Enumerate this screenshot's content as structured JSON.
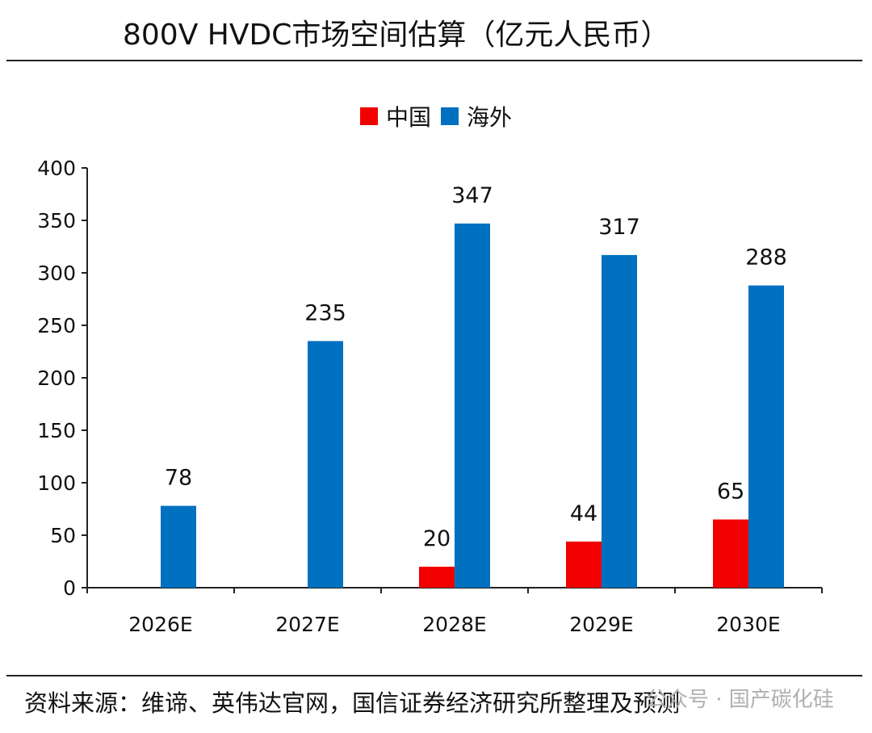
{
  "title": "800V HVDC市场空间估算（亿元人民币）",
  "source": "资料来源：维谛、英伟达官网，国信证券经济研究所整理及预测",
  "watermark": "公众号 · 国产碳化硅",
  "colors": {
    "china": "#f20000",
    "overseas": "#0070c0",
    "axis": "#222222"
  },
  "chart_data": {
    "type": "bar",
    "categories": [
      "2026E",
      "2027E",
      "2028E",
      "2029E",
      "2030E"
    ],
    "series": [
      {
        "name": "中国",
        "values": [
          null,
          null,
          20,
          44,
          65
        ]
      },
      {
        "name": "海外",
        "values": [
          78,
          235,
          347,
          317,
          288
        ]
      }
    ],
    "yticks": [
      0,
      50,
      100,
      150,
      200,
      250,
      300,
      350,
      400
    ],
    "ylim": [
      0,
      400
    ],
    "grid": false,
    "legend_position": "top-center"
  }
}
